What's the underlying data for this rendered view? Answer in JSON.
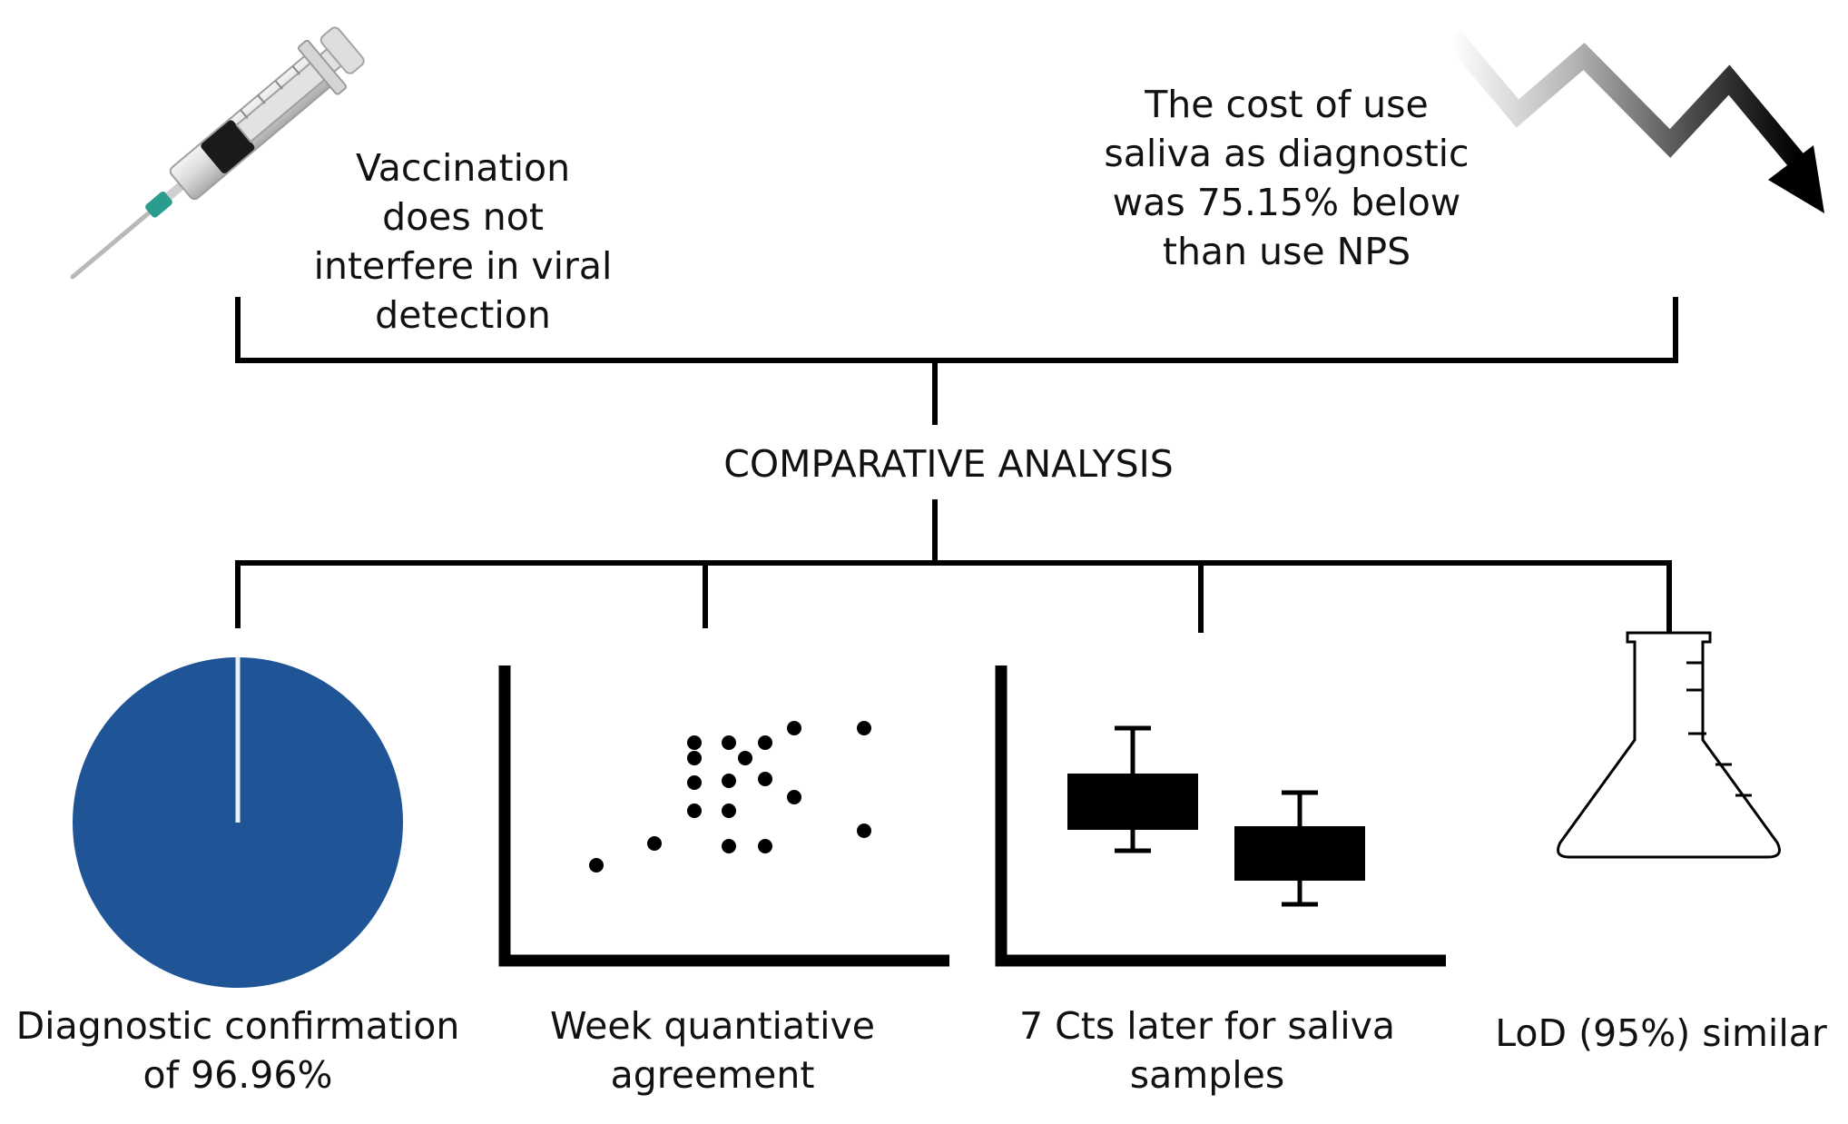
{
  "top": {
    "vaccination_text": "Vaccination does not interfere in viral detection",
    "cost_text": "The cost of use saliva as diagnostic was 75.15% below than use NPS"
  },
  "center": {
    "title": "COMPARATIVE ANALYSIS"
  },
  "bottom": {
    "diagnostic_caption": "Diagnostic confirmation of 96.96%",
    "scatter_caption": "Week quantiative agreement",
    "boxplot_caption": "7 Cts later for saliva samples",
    "lod_caption": "LoD (95%) similar"
  },
  "icons": {
    "syringe": "syringe-icon",
    "downtrend": "downtrend-arrow-icon",
    "pie": "pie-icon",
    "scatter": "scatter-plot-icon",
    "boxplot": "box-plot-icon",
    "flask": "erlenmeyer-flask-icon"
  },
  "colors": {
    "pie_fill": "#1f5496",
    "line": "#000000"
  },
  "pie_fraction": 0.9696
}
